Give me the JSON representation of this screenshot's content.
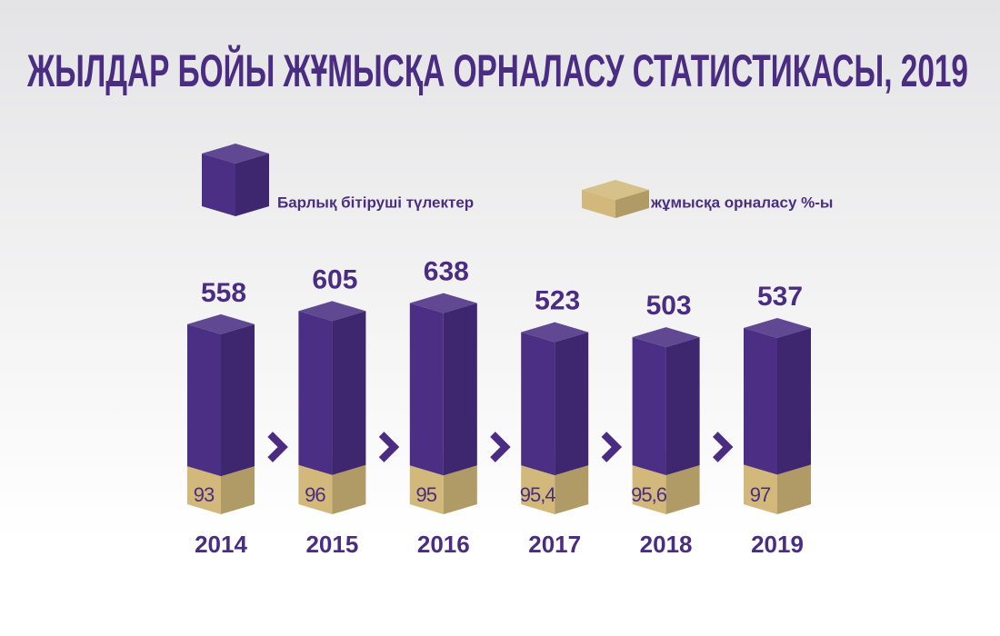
{
  "chart_data": {
    "type": "bar3d",
    "title": "ЖЫЛДАР БОЙЫ ЖҰМЫСҚА ОРНАЛАСУ СТАТИСТИКАСЫ, 2019",
    "categories": [
      "2014",
      "2015",
      "2016",
      "2017",
      "2018",
      "2019"
    ],
    "series": [
      {
        "name": "Барлық бітіруші түлектер",
        "color": "#4b2f85",
        "values": [
          558,
          605,
          638,
          523,
          503,
          537
        ]
      },
      {
        "name": "жұмысқа орналасу %-ы",
        "color": "#d2b97b",
        "values": [
          93,
          96,
          95,
          95.4,
          95.6,
          97
        ],
        "value_labels": [
          "93",
          "96",
          "95",
          "95,4",
          "95,6",
          "97"
        ]
      }
    ]
  }
}
